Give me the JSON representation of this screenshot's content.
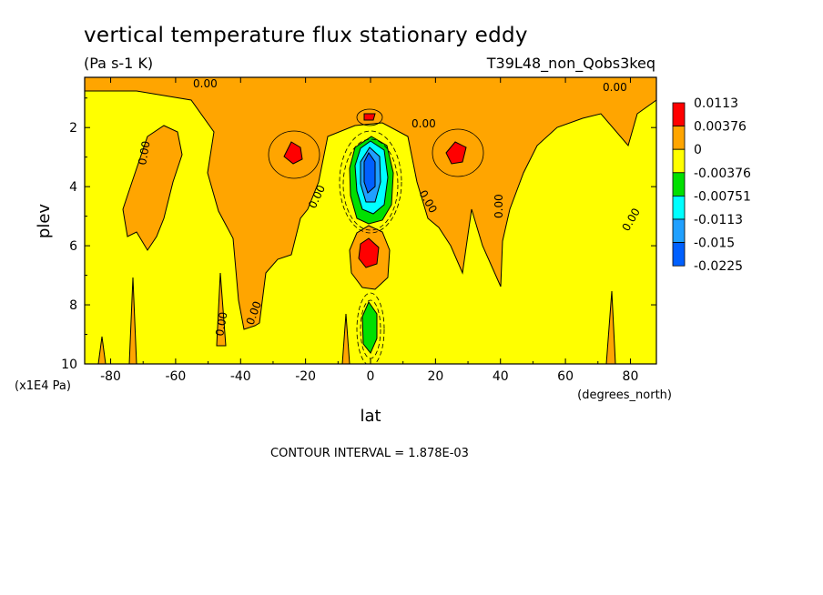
{
  "chart_data": {
    "type": "heatmap",
    "title": "vertical temperature flux stationary eddy",
    "units": "(Pa s-1 K)",
    "dataset": "T39L48_non_Qobs3keq",
    "xlabel": "lat",
    "xunits": "(degrees_north)",
    "ylabel": "plev",
    "yunits": "(x1E4 Pa)",
    "xlim": [
      -88,
      88
    ],
    "ylim": [
      10,
      0.3
    ],
    "x_ticks": [
      "-80",
      "-60",
      "-40",
      "-20",
      "0",
      "20",
      "40",
      "60",
      "80"
    ],
    "x_tick_values": [
      -80,
      -60,
      -40,
      -20,
      0,
      20,
      40,
      60,
      80
    ],
    "y_ticks": [
      "2",
      "4",
      "6",
      "8",
      "10"
    ],
    "y_tick_values": [
      2,
      4,
      6,
      8,
      10
    ],
    "footer": "CONTOUR INTERVAL = 1.878E-03",
    "contour_label": "0.00",
    "legend": {
      "position": "right",
      "levels": [
        "0.0113",
        "0.00376",
        "0",
        "-0.00376",
        "-0.00751",
        "-0.0113",
        "-0.015",
        "-0.0225"
      ],
      "colors": [
        "#ff0000",
        "#ffa500",
        "#ffff00",
        "#00e000",
        "#00ffff",
        "#20a0ff",
        "#0060ff"
      ]
    },
    "features": [
      {
        "name": "negative core",
        "lat": 0,
        "plev": 3.3,
        "value": -0.0225
      },
      {
        "name": "positive max south",
        "lat": -24,
        "plev": 2.7,
        "value": 0.0113
      },
      {
        "name": "positive max north",
        "lat": 27,
        "plev": 2.6,
        "value": 0.0113
      },
      {
        "name": "positive max equator",
        "lat": 0,
        "plev": 6.0,
        "value": 0.0113
      },
      {
        "name": "negative lower",
        "lat": 0,
        "plev": 8.8,
        "value": -0.00751
      }
    ]
  }
}
